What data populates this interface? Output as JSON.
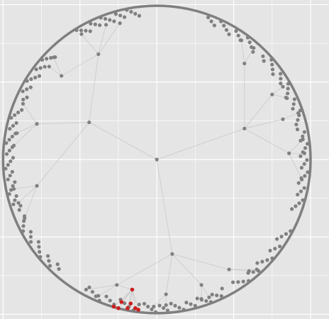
{
  "chart_data": {
    "type": "scatter",
    "title": "",
    "xlabel": "",
    "ylabel": "",
    "grid": true,
    "legend": "none",
    "xlim": [
      -1.02,
      1.12
    ],
    "ylim": [
      -1.03,
      1.03
    ],
    "colors": {
      "background": "#e5e5e5",
      "gridline": "#ffffff",
      "boundary": "#7f7f7f",
      "edge": "#c9c9c9",
      "node": "#808080",
      "highlight": "#cc1f1f"
    },
    "boundary_circle": {
      "center": [
        0,
        0
      ],
      "radius": 1
    },
    "nodes": [
      {
        "id": "root",
        "x": 0.0,
        "y": 0.0
      },
      {
        "id": "a",
        "x": -0.44,
        "y": 0.24
      },
      {
        "id": "b",
        "x": 0.57,
        "y": 0.2
      },
      {
        "id": "c",
        "x": 0.1,
        "y": -0.61
      },
      {
        "id": "a1",
        "x": -0.38,
        "y": 0.68
      },
      {
        "id": "a1x",
        "x": -0.24,
        "y": 0.88
      },
      {
        "id": "a1y",
        "x": -0.33,
        "y": 0.87
      },
      {
        "id": "a1z",
        "x": -0.49,
        "y": 0.81
      },
      {
        "id": "a2",
        "x": -0.62,
        "y": 0.54
      },
      {
        "id": "a2x",
        "x": -0.7,
        "y": 0.6
      },
      {
        "id": "a2y",
        "x": -0.67,
        "y": 0.66
      },
      {
        "id": "a3",
        "x": -0.78,
        "y": 0.23
      },
      {
        "id": "a3x",
        "x": -0.87,
        "y": 0.36
      },
      {
        "id": "a3y",
        "x": -0.91,
        "y": 0.17
      },
      {
        "id": "a3z",
        "x": -0.93,
        "y": 0.09
      },
      {
        "id": "a4",
        "x": -0.78,
        "y": -0.17
      },
      {
        "id": "a4x",
        "x": -0.93,
        "y": -0.19
      },
      {
        "id": "a4y",
        "x": -0.9,
        "y": -0.28
      },
      {
        "id": "a4z",
        "x": -0.86,
        "y": -0.38
      },
      {
        "id": "b1",
        "x": 0.57,
        "y": 0.62
      },
      {
        "id": "b1x",
        "x": 0.55,
        "y": 0.77
      },
      {
        "id": "b1y",
        "x": 0.63,
        "y": 0.72
      },
      {
        "id": "b2",
        "x": 0.75,
        "y": 0.42
      },
      {
        "id": "b2x",
        "x": 0.82,
        "y": 0.47
      },
      {
        "id": "b2y",
        "x": 0.84,
        "y": 0.4
      },
      {
        "id": "b3",
        "x": 0.82,
        "y": 0.26
      },
      {
        "id": "b3x",
        "x": 0.92,
        "y": 0.3
      },
      {
        "id": "b4",
        "x": 0.86,
        "y": 0.04
      },
      {
        "id": "b4x",
        "x": 0.95,
        "y": 0.13
      },
      {
        "id": "b4y",
        "x": 0.96,
        "y": 0.04
      },
      {
        "id": "b4z",
        "x": 0.94,
        "y": -0.12
      },
      {
        "id": "c1",
        "x": -0.26,
        "y": -0.81
      },
      {
        "id": "c1x",
        "x": -0.38,
        "y": -0.88
      },
      {
        "id": "c1y",
        "x": -0.46,
        "y": -0.84
      },
      {
        "id": "c2",
        "x": 0.06,
        "y": -0.87
      },
      {
        "id": "c2x",
        "x": 0.06,
        "y": -0.94
      },
      {
        "id": "c2y",
        "x": -0.02,
        "y": -0.95
      },
      {
        "id": "c3",
        "x": 0.29,
        "y": -0.81
      },
      {
        "id": "c3x",
        "x": 0.29,
        "y": -0.9
      },
      {
        "id": "c3y",
        "x": 0.34,
        "y": -0.89
      },
      {
        "id": "c4",
        "x": 0.47,
        "y": -0.71
      },
      {
        "id": "c4x",
        "x": 0.6,
        "y": -0.72
      },
      {
        "id": "c4y",
        "x": 0.65,
        "y": -0.71
      },
      {
        "id": "r1",
        "x": -0.16,
        "y": -0.84,
        "highlight": true
      },
      {
        "id": "r2",
        "x": -0.23,
        "y": -0.92,
        "highlight": true
      },
      {
        "id": "r3",
        "x": -0.17,
        "y": -0.93,
        "highlight": true
      },
      {
        "id": "r4",
        "x": -0.19,
        "y": -0.96,
        "highlight": true
      },
      {
        "id": "r5",
        "x": -0.25,
        "y": -0.96,
        "highlight": true
      },
      {
        "id": "r6",
        "x": -0.14,
        "y": -0.96,
        "highlight": true
      },
      {
        "id": "r7",
        "x": -0.28,
        "y": -0.95,
        "highlight": true
      },
      {
        "id": "r8",
        "x": -0.12,
        "y": -0.97,
        "highlight": true
      }
    ],
    "edges": [
      [
        "root",
        "a"
      ],
      [
        "root",
        "b"
      ],
      [
        "root",
        "c"
      ],
      [
        "a",
        "a1"
      ],
      [
        "a",
        "a3"
      ],
      [
        "a",
        "a4"
      ],
      [
        "a1",
        "a2"
      ],
      [
        "a1",
        "a1x"
      ],
      [
        "a1",
        "a1y"
      ],
      [
        "a1",
        "a1z"
      ],
      [
        "a2",
        "a2x"
      ],
      [
        "a2",
        "a2y"
      ],
      [
        "a3",
        "a3x"
      ],
      [
        "a3",
        "a3y"
      ],
      [
        "a3",
        "a3z"
      ],
      [
        "a4",
        "a4x"
      ],
      [
        "a4",
        "a4y"
      ],
      [
        "a4",
        "a4z"
      ],
      [
        "b",
        "b1"
      ],
      [
        "b",
        "b2"
      ],
      [
        "b",
        "b3"
      ],
      [
        "b",
        "b4"
      ],
      [
        "b1",
        "b1x"
      ],
      [
        "b1",
        "b1y"
      ],
      [
        "b2",
        "b2x"
      ],
      [
        "b2",
        "b2y"
      ],
      [
        "b3",
        "b3x"
      ],
      [
        "b4",
        "b4x"
      ],
      [
        "b4",
        "b4y"
      ],
      [
        "b4",
        "b4z"
      ],
      [
        "c",
        "c1"
      ],
      [
        "c",
        "c2"
      ],
      [
        "c",
        "c3"
      ],
      [
        "c",
        "c4"
      ],
      [
        "c1",
        "c1x"
      ],
      [
        "c1",
        "c1y"
      ],
      [
        "c2",
        "c2x"
      ],
      [
        "c2",
        "c2y"
      ],
      [
        "c3",
        "c3x"
      ],
      [
        "c3",
        "c3y"
      ],
      [
        "c4",
        "c4x"
      ],
      [
        "c4",
        "c4y"
      ],
      [
        "c1",
        "r1"
      ],
      [
        "r1",
        "r2"
      ],
      [
        "r1",
        "r3"
      ],
      [
        "r1",
        "r4"
      ],
      [
        "r1",
        "r5"
      ],
      [
        "r1",
        "r6"
      ],
      [
        "r1",
        "r7"
      ],
      [
        "r1",
        "r8"
      ]
    ],
    "boundary_clusters": [
      {
        "from_deg": 97,
        "to_deg": 122,
        "count": 18
      },
      {
        "from_deg": 135,
        "to_deg": 156,
        "count": 16
      },
      {
        "from_deg": 160,
        "to_deg": 200,
        "count": 30
      },
      {
        "from_deg": 203,
        "to_deg": 228,
        "count": 16
      },
      {
        "from_deg": 48,
        "to_deg": 70,
        "count": 14
      },
      {
        "from_deg": 14,
        "to_deg": 44,
        "count": 20
      },
      {
        "from_deg": -20,
        "to_deg": 12,
        "count": 22
      },
      {
        "from_deg": -58,
        "to_deg": -28,
        "count": 18
      },
      {
        "from_deg": -95,
        "to_deg": -63,
        "count": 22
      },
      {
        "from_deg": -118,
        "to_deg": -97,
        "count": 12
      }
    ]
  }
}
